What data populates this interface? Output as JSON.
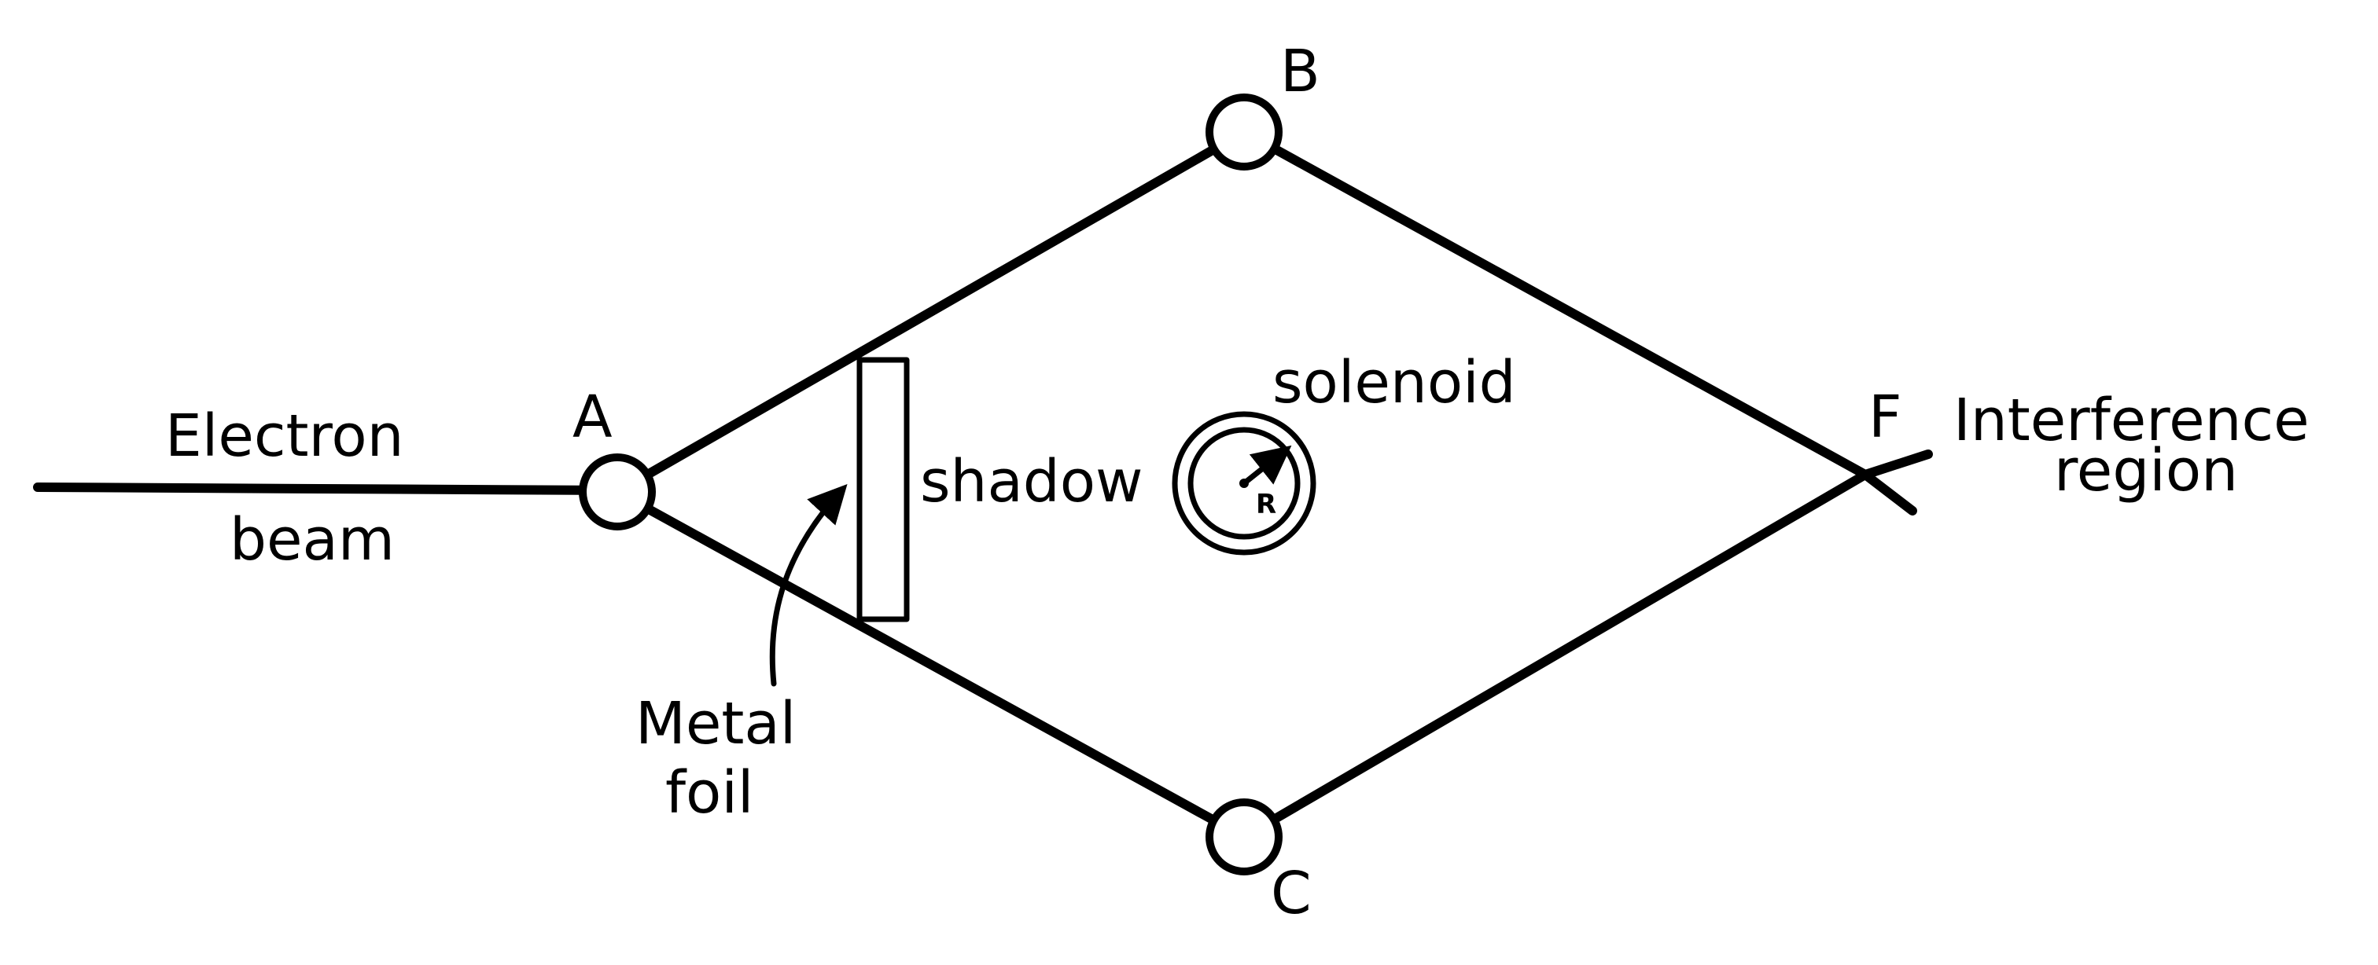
{
  "labels": {
    "electron": "Electron",
    "beam": "beam",
    "point_a": "A",
    "point_b": "B",
    "point_c": "C",
    "point_f": "F",
    "shadow": "shadow",
    "solenoid": "solenoid",
    "radius": "R",
    "interference_line1": "Interference",
    "interference_line2": "region",
    "metal_line1": "Metal",
    "metal_line2": "foil"
  }
}
